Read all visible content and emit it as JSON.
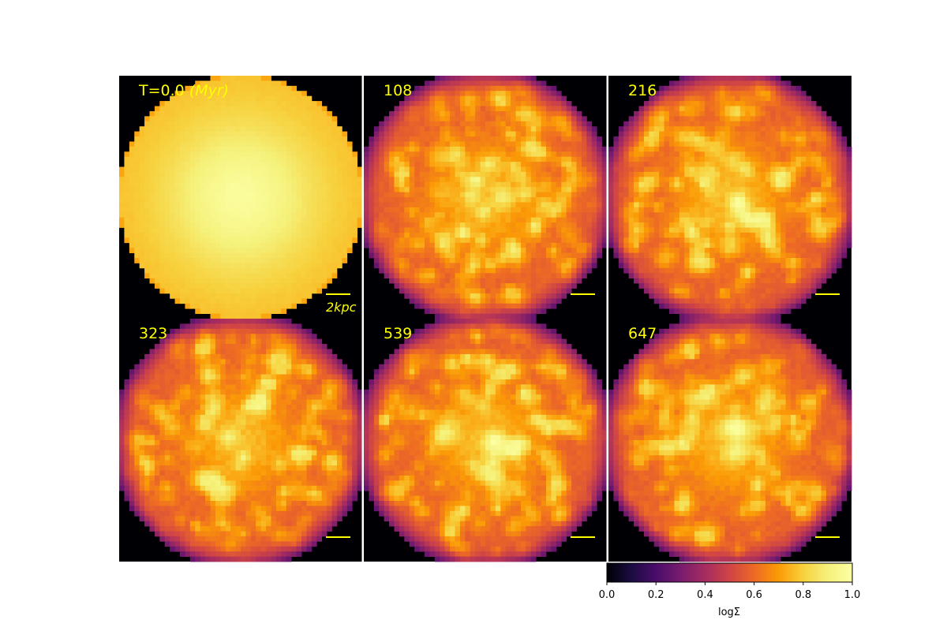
{
  "chart_data": {
    "type": "heatmap",
    "description_units": "log surface density map panels (normalized)",
    "panels": [
      {
        "label": "T=0.0 ",
        "label_italic": "(Myr)",
        "time_myr": 0.0,
        "scalebar_label": "2kpc",
        "peak_logsigma": 1.0,
        "edge_logsigma": 0.75
      },
      {
        "label": "108",
        "time_myr": 108,
        "scalebar_label": "",
        "peak_logsigma": 1.0,
        "edge_logsigma": 0.25
      },
      {
        "label": "216",
        "time_myr": 216,
        "scalebar_label": "",
        "peak_logsigma": 1.0,
        "edge_logsigma": 0.25
      },
      {
        "label": "323",
        "time_myr": 323,
        "scalebar_label": "",
        "peak_logsigma": 1.0,
        "edge_logsigma": 0.25
      },
      {
        "label": "539",
        "time_myr": 539,
        "scalebar_label": "",
        "peak_logsigma": 1.0,
        "edge_logsigma": 0.25
      },
      {
        "label": "647",
        "time_myr": 647,
        "scalebar_label": "",
        "peak_logsigma": 1.0,
        "edge_logsigma": 0.25
      }
    ],
    "colorbar": {
      "label": "logΣ",
      "range": [
        0.0,
        1.0
      ],
      "ticks": [
        "0.0",
        "0.2",
        "0.4",
        "0.6",
        "0.8",
        "1.0"
      ],
      "colormap": "inferno"
    },
    "scalebar_length_kpc": 2
  },
  "colors": {
    "annotation": "#ffff00",
    "divider": "#ffffff"
  }
}
